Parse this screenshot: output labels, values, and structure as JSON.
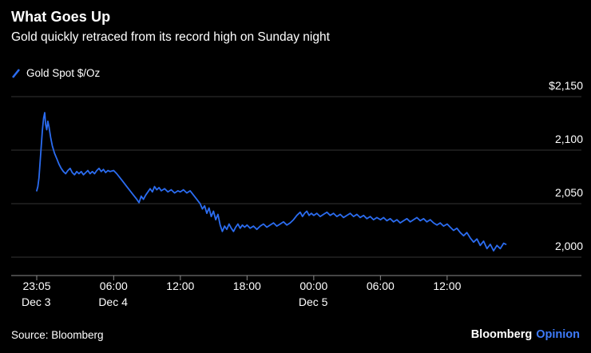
{
  "header": {
    "title": "What Goes Up",
    "subtitle": "Gold quickly retraced from its record high on Sunday night"
  },
  "legend": {
    "label": "Gold Spot $/Oz"
  },
  "footer": {
    "source": "Source: Bloomberg",
    "brand": "Bloomberg",
    "brand_suffix": "Opinion"
  },
  "colors": {
    "background": "#000000",
    "accent": "#2b6cf0",
    "opinion": "#3e7bfa",
    "grid": "#333333",
    "axis": "#8a8a8a",
    "text": "#ffffff"
  },
  "chart_data": {
    "type": "line",
    "title": "What Goes Up",
    "subtitle": "Gold quickly retraced from its record high on Sunday night",
    "series_name": "Gold Spot $/Oz",
    "unit": "USD per ounce",
    "ylim": [
      1983,
      2155
    ],
    "grid": true,
    "legend_position": "top-left",
    "y_gridlines": [
      {
        "value": 2000,
        "label": "2,000"
      },
      {
        "value": 2050,
        "label": "2,050"
      },
      {
        "value": 2100,
        "label": "2,100"
      },
      {
        "value": 2150,
        "label": "$2,150"
      }
    ],
    "x_ticks": [
      {
        "hour": 0,
        "time": "23:05",
        "date": "Dec 3"
      },
      {
        "hour": 6.92,
        "time": "06:00",
        "date": "Dec 4"
      },
      {
        "hour": 12.92,
        "time": "12:00"
      },
      {
        "hour": 18.92,
        "time": "18:00"
      },
      {
        "hour": 24.92,
        "time": "00:00",
        "date": "Dec 5"
      },
      {
        "hour": 30.92,
        "time": "06:00"
      },
      {
        "hour": 36.92,
        "time": "12:00"
      }
    ],
    "points": [
      [
        0.0,
        2062
      ],
      [
        0.1,
        2066
      ],
      [
        0.2,
        2074
      ],
      [
        0.35,
        2096
      ],
      [
        0.5,
        2118
      ],
      [
        0.62,
        2130
      ],
      [
        0.72,
        2135
      ],
      [
        0.8,
        2124
      ],
      [
        0.9,
        2119
      ],
      [
        1.0,
        2127
      ],
      [
        1.1,
        2122
      ],
      [
        1.25,
        2112
      ],
      [
        1.4,
        2104
      ],
      [
        1.6,
        2097
      ],
      [
        1.8,
        2092
      ],
      [
        2.0,
        2087
      ],
      [
        2.2,
        2083
      ],
      [
        2.4,
        2080
      ],
      [
        2.6,
        2078
      ],
      [
        2.8,
        2081
      ],
      [
        3.0,
        2083
      ],
      [
        3.2,
        2079
      ],
      [
        3.4,
        2077
      ],
      [
        3.6,
        2080
      ],
      [
        3.8,
        2078
      ],
      [
        4.0,
        2080
      ],
      [
        4.2,
        2077
      ],
      [
        4.4,
        2079
      ],
      [
        4.6,
        2081
      ],
      [
        4.8,
        2078
      ],
      [
        5.0,
        2080
      ],
      [
        5.2,
        2078
      ],
      [
        5.4,
        2081
      ],
      [
        5.6,
        2083
      ],
      [
        5.8,
        2080
      ],
      [
        6.0,
        2082
      ],
      [
        6.2,
        2079
      ],
      [
        6.4,
        2081
      ],
      [
        6.6,
        2080
      ],
      [
        6.92,
        2081
      ],
      [
        7.2,
        2078
      ],
      [
        7.5,
        2074
      ],
      [
        7.8,
        2070
      ],
      [
        8.1,
        2066
      ],
      [
        8.4,
        2062
      ],
      [
        8.7,
        2058
      ],
      [
        9.0,
        2054
      ],
      [
        9.2,
        2051
      ],
      [
        9.4,
        2057
      ],
      [
        9.6,
        2054
      ],
      [
        9.8,
        2058
      ],
      [
        10.0,
        2061
      ],
      [
        10.2,
        2064
      ],
      [
        10.4,
        2061
      ],
      [
        10.6,
        2066
      ],
      [
        10.8,
        2063
      ],
      [
        11.0,
        2065
      ],
      [
        11.2,
        2062
      ],
      [
        11.5,
        2064
      ],
      [
        11.8,
        2061
      ],
      [
        12.1,
        2063
      ],
      [
        12.4,
        2060
      ],
      [
        12.7,
        2062
      ],
      [
        12.92,
        2061
      ],
      [
        13.2,
        2063
      ],
      [
        13.5,
        2060
      ],
      [
        13.8,
        2062
      ],
      [
        14.1,
        2058
      ],
      [
        14.4,
        2054
      ],
      [
        14.7,
        2050
      ],
      [
        14.9,
        2045
      ],
      [
        15.1,
        2048
      ],
      [
        15.3,
        2041
      ],
      [
        15.5,
        2046
      ],
      [
        15.7,
        2038
      ],
      [
        15.9,
        2043
      ],
      [
        16.1,
        2035
      ],
      [
        16.3,
        2040
      ],
      [
        16.5,
        2030
      ],
      [
        16.7,
        2024
      ],
      [
        16.9,
        2029
      ],
      [
        17.1,
        2026
      ],
      [
        17.3,
        2031
      ],
      [
        17.5,
        2027
      ],
      [
        17.7,
        2024
      ],
      [
        17.9,
        2028
      ],
      [
        18.1,
        2031
      ],
      [
        18.3,
        2027
      ],
      [
        18.5,
        2030
      ],
      [
        18.7,
        2028
      ],
      [
        18.92,
        2030
      ],
      [
        19.2,
        2027
      ],
      [
        19.5,
        2029
      ],
      [
        19.8,
        2026
      ],
      [
        20.1,
        2029
      ],
      [
        20.4,
        2031
      ],
      [
        20.7,
        2028
      ],
      [
        21.0,
        2030
      ],
      [
        21.3,
        2032
      ],
      [
        21.6,
        2029
      ],
      [
        21.9,
        2031
      ],
      [
        22.2,
        2033
      ],
      [
        22.5,
        2030
      ],
      [
        22.8,
        2032
      ],
      [
        23.1,
        2035
      ],
      [
        23.4,
        2039
      ],
      [
        23.7,
        2042
      ],
      [
        23.9,
        2038
      ],
      [
        24.1,
        2041
      ],
      [
        24.3,
        2043
      ],
      [
        24.5,
        2039
      ],
      [
        24.7,
        2041
      ],
      [
        24.92,
        2039
      ],
      [
        25.2,
        2041
      ],
      [
        25.5,
        2038
      ],
      [
        25.8,
        2040
      ],
      [
        26.1,
        2042
      ],
      [
        26.4,
        2039
      ],
      [
        26.7,
        2041
      ],
      [
        27.0,
        2038
      ],
      [
        27.3,
        2040
      ],
      [
        27.6,
        2037
      ],
      [
        27.9,
        2039
      ],
      [
        28.2,
        2041
      ],
      [
        28.5,
        2038
      ],
      [
        28.8,
        2040
      ],
      [
        29.1,
        2037
      ],
      [
        29.4,
        2039
      ],
      [
        29.7,
        2036
      ],
      [
        30.0,
        2038
      ],
      [
        30.3,
        2035
      ],
      [
        30.6,
        2037
      ],
      [
        30.92,
        2035
      ],
      [
        31.2,
        2037
      ],
      [
        31.5,
        2034
      ],
      [
        31.8,
        2036
      ],
      [
        32.1,
        2033
      ],
      [
        32.4,
        2035
      ],
      [
        32.7,
        2032
      ],
      [
        33.0,
        2034
      ],
      [
        33.3,
        2036
      ],
      [
        33.6,
        2033
      ],
      [
        33.9,
        2035
      ],
      [
        34.2,
        2037
      ],
      [
        34.5,
        2034
      ],
      [
        34.8,
        2036
      ],
      [
        35.1,
        2033
      ],
      [
        35.4,
        2035
      ],
      [
        35.7,
        2032
      ],
      [
        36.0,
        2030
      ],
      [
        36.3,
        2032
      ],
      [
        36.6,
        2029
      ],
      [
        36.92,
        2031
      ],
      [
        37.2,
        2028
      ],
      [
        37.5,
        2025
      ],
      [
        37.8,
        2027
      ],
      [
        38.1,
        2023
      ],
      [
        38.4,
        2020
      ],
      [
        38.7,
        2023
      ],
      [
        39.0,
        2018
      ],
      [
        39.3,
        2014
      ],
      [
        39.6,
        2017
      ],
      [
        39.9,
        2011
      ],
      [
        40.2,
        2015
      ],
      [
        40.5,
        2008
      ],
      [
        40.8,
        2012
      ],
      [
        41.1,
        2006
      ],
      [
        41.4,
        2011
      ],
      [
        41.7,
        2008
      ],
      [
        42.0,
        2013
      ],
      [
        42.2,
        2012
      ]
    ]
  }
}
